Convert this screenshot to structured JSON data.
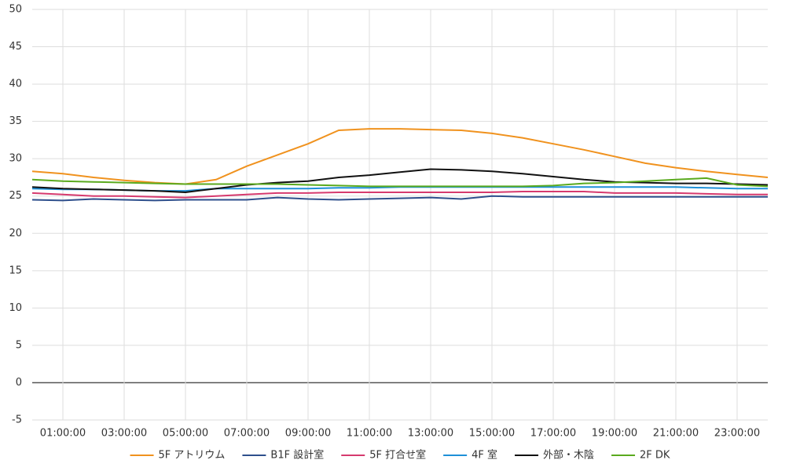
{
  "chart_data": {
    "type": "line",
    "x": [
      0,
      1,
      2,
      3,
      4,
      5,
      6,
      7,
      8,
      9,
      10,
      11,
      12,
      13,
      14,
      15,
      16,
      17,
      18,
      19,
      20,
      21,
      22,
      23,
      24
    ],
    "xlim": [
      0,
      24
    ],
    "xticks": [
      {
        "value": 1,
        "label": "01:00:00"
      },
      {
        "value": 3,
        "label": "03:00:00"
      },
      {
        "value": 5,
        "label": "05:00:00"
      },
      {
        "value": 7,
        "label": "07:00:00"
      },
      {
        "value": 9,
        "label": "09:00:00"
      },
      {
        "value": 11,
        "label": "11:00:00"
      },
      {
        "value": 13,
        "label": "13:00:00"
      },
      {
        "value": 15,
        "label": "15:00:00"
      },
      {
        "value": 17,
        "label": "17:00:00"
      },
      {
        "value": 19,
        "label": "19:00:00"
      },
      {
        "value": 21,
        "label": "21:00:00"
      },
      {
        "value": 23,
        "label": "23:00:00"
      }
    ],
    "ylim": [
      -5,
      50
    ],
    "yticks": [
      -5,
      0,
      5,
      10,
      15,
      20,
      25,
      30,
      35,
      40,
      45,
      50
    ],
    "grid": true,
    "legend": "bottom",
    "series": [
      {
        "name": "5F アトリウム",
        "color": "#f0921e",
        "values": [
          28.3,
          28,
          27.5,
          27.1,
          26.8,
          26.6,
          27.2,
          29,
          30.5,
          32,
          33.8,
          34,
          34,
          33.9,
          33.8,
          33.4,
          32.8,
          32,
          31.2,
          30.3,
          29.4,
          28.8,
          28.3,
          27.9,
          27.5
        ]
      },
      {
        "name": "B1F 設計室",
        "color": "#2e4f8c",
        "values": [
          24.5,
          24.4,
          24.6,
          24.5,
          24.4,
          24.5,
          24.5,
          24.5,
          24.8,
          24.6,
          24.5,
          24.6,
          24.7,
          24.8,
          24.6,
          25,
          24.9,
          24.9,
          24.9,
          24.9,
          24.9,
          24.9,
          24.9,
          24.9,
          24.9
        ]
      },
      {
        "name": "5F 打合せ室",
        "color": "#d63a6e",
        "values": [
          25.4,
          25.2,
          25,
          25,
          24.9,
          24.8,
          25,
          25.2,
          25.4,
          25.4,
          25.5,
          25.5,
          25.5,
          25.5,
          25.5,
          25.5,
          25.6,
          25.6,
          25.6,
          25.4,
          25.4,
          25.4,
          25.3,
          25.2,
          25.2
        ]
      },
      {
        "name": "4F 室",
        "color": "#1e90d8",
        "values": [
          26,
          25.9,
          25.9,
          25.8,
          25.7,
          25.7,
          26,
          26,
          26,
          26,
          26.1,
          26.1,
          26.2,
          26.2,
          26.2,
          26.2,
          26.2,
          26.2,
          26.2,
          26.2,
          26.2,
          26.2,
          26.1,
          26,
          26
        ]
      },
      {
        "name": "外部・木陰",
        "color": "#111111",
        "values": [
          26.2,
          26,
          25.9,
          25.8,
          25.7,
          25.5,
          26,
          26.5,
          26.8,
          27,
          27.5,
          27.8,
          28.2,
          28.6,
          28.5,
          28.3,
          28,
          27.6,
          27.2,
          26.9,
          26.8,
          26.7,
          26.7,
          26.6,
          26.5
        ]
      },
      {
        "name": "2F DK",
        "color": "#5aaa1e",
        "values": [
          27.2,
          27,
          26.9,
          26.8,
          26.7,
          26.6,
          26.6,
          26.6,
          26.6,
          26.5,
          26.4,
          26.3,
          26.3,
          26.3,
          26.3,
          26.3,
          26.3,
          26.4,
          26.7,
          26.8,
          27,
          27.2,
          27.4,
          26.5,
          26.3
        ]
      }
    ]
  }
}
